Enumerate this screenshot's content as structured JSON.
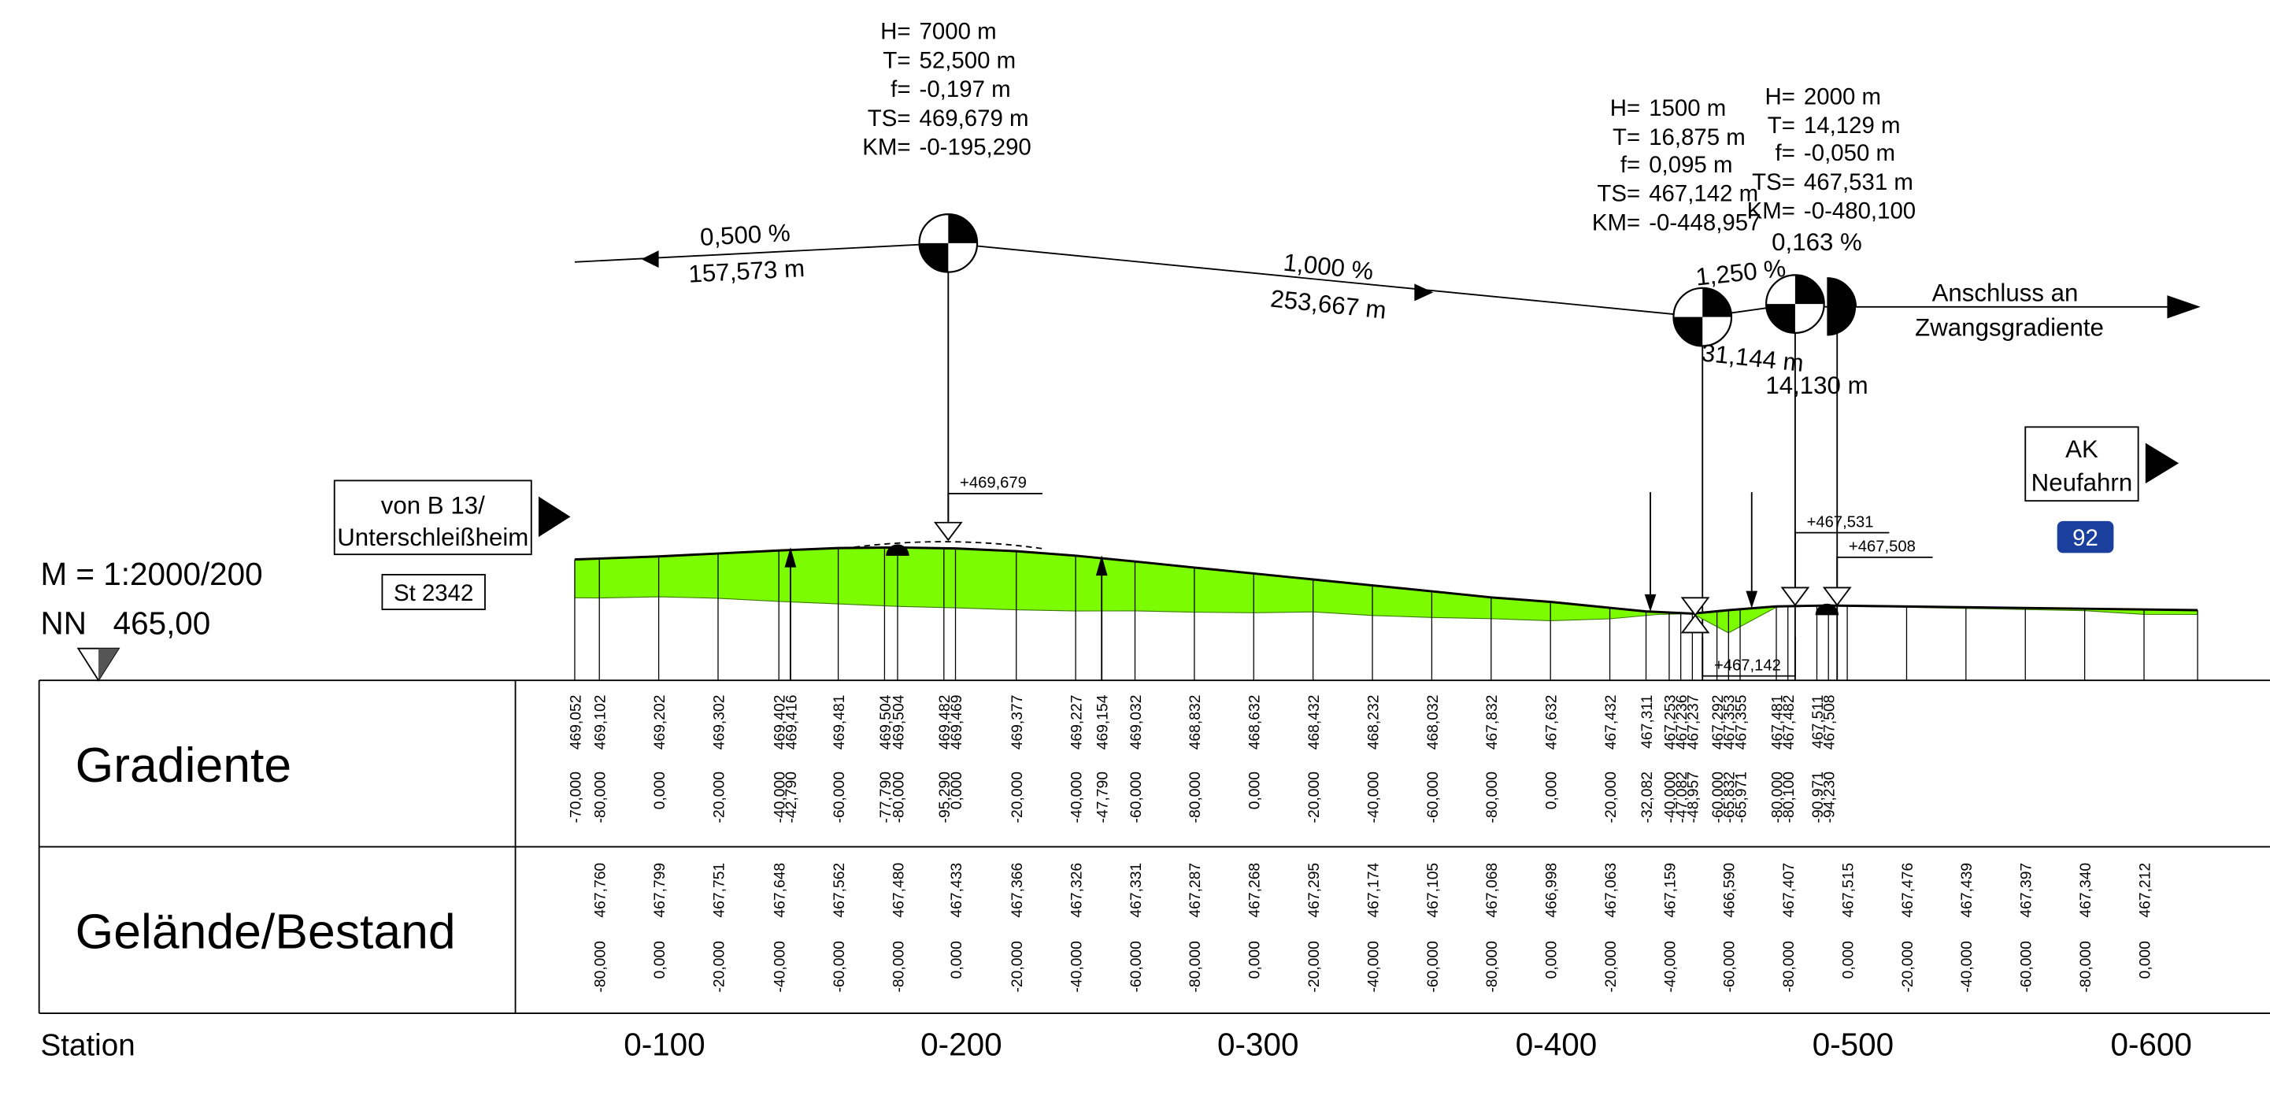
{
  "scale": "M = 1:2000/200",
  "datum": "NN   465,00",
  "start": {
    "label_lines": [
      "von B 13/",
      "Unterschleißheim"
    ],
    "road": "St 2342"
  },
  "end": {
    "label_lines": [
      "AK",
      "Neufahrn"
    ],
    "exit_number": "92"
  },
  "connection": [
    "Anschluss an",
    "Zwangsgradiente"
  ],
  "vertical_curves": [
    {
      "lines": [
        [
          "H=",
          "7000 m"
        ],
        [
          "T=",
          "52,500 m"
        ],
        [
          "f=",
          "-0,197 m"
        ],
        [
          "TS=",
          "469,679 m"
        ],
        [
          "KM=",
          "-0-195,290"
        ]
      ]
    },
    {
      "lines": [
        [
          "H=",
          "1500 m"
        ],
        [
          "T=",
          "16,875 m"
        ],
        [
          "f=",
          "0,095 m"
        ],
        [
          "TS=",
          "467,142 m"
        ],
        [
          "KM=",
          "-0-448,957"
        ]
      ]
    },
    {
      "lines": [
        [
          "H=",
          "2000 m"
        ],
        [
          "T=",
          "14,129 m"
        ],
        [
          "f=",
          "-0,050 m"
        ],
        [
          "TS=",
          "467,531 m"
        ],
        [
          "KM=",
          "-0-480,100"
        ]
      ]
    }
  ],
  "grades": [
    {
      "slope": "0,500 %",
      "length": "157,573 m"
    },
    {
      "slope": "1,000 %",
      "length": "253,667 m"
    },
    {
      "slope": "1,250 %",
      "length": "31,144 m"
    },
    {
      "slope": "0,163 %",
      "length": "14,130 m"
    }
  ],
  "elevation_tags": [
    "+469,679",
    "+467,142",
    "+467,531",
    "+467,508"
  ],
  "table": {
    "rows": [
      {
        "title": "Gradiente",
        "columns": [
          [
            "469,052",
            "-70,000"
          ],
          [
            "469,102",
            "-80,000"
          ],
          [
            "469,202",
            "0,000"
          ],
          [
            "469,302",
            "-20,000"
          ],
          [
            "469,402",
            "-40,000"
          ],
          [
            "469,416",
            "-42,790"
          ],
          [
            "469,481",
            "-60,000"
          ],
          [
            "469,504",
            "-77,790"
          ],
          [
            "469,504",
            "-80,000"
          ],
          [
            "469,482",
            "-95,290"
          ],
          [
            "469,469",
            "0,000"
          ],
          [
            "469,377",
            "-20,000"
          ],
          [
            "469,227",
            "-40,000"
          ],
          [
            "469,154",
            "-47,790"
          ],
          [
            "469,032",
            "-60,000"
          ],
          [
            "468,832",
            "-80,000"
          ],
          [
            "468,632",
            "0,000"
          ],
          [
            "468,432",
            "-20,000"
          ],
          [
            "468,232",
            "-40,000"
          ],
          [
            "468,032",
            "-60,000"
          ],
          [
            "467,832",
            "-80,000"
          ],
          [
            "467,632",
            "0,000"
          ],
          [
            "467,432",
            "-20,000"
          ],
          [
            "467,311",
            "-32,082"
          ],
          [
            "467,253",
            "-40,000"
          ],
          [
            "467,236",
            "-47,082"
          ],
          [
            "467,237",
            "-48,957"
          ],
          [
            "467,292",
            "-60,000"
          ],
          [
            "467,353",
            "-65,832"
          ],
          [
            "467,355",
            "-65,971"
          ],
          [
            "467,481",
            "-80,000"
          ],
          [
            "467,482",
            "-80,100"
          ],
          [
            "467,511",
            "-90,971"
          ],
          [
            "467,508",
            "-94,230"
          ]
        ]
      },
      {
        "title": "Gelände/Bestand",
        "columns": [
          [
            "467,760",
            "-80,000"
          ],
          [
            "467,799",
            "0,000"
          ],
          [
            "467,751",
            "-20,000"
          ],
          [
            "467,648",
            "-40,000"
          ],
          [
            "467,562",
            "-60,000"
          ],
          [
            "467,480",
            "-80,000"
          ],
          [
            "467,433",
            "0,000"
          ],
          [
            "467,366",
            "-20,000"
          ],
          [
            "467,326",
            "-40,000"
          ],
          [
            "467,331",
            "-60,000"
          ],
          [
            "467,287",
            "-80,000"
          ],
          [
            "467,268",
            "0,000"
          ],
          [
            "467,295",
            "-20,000"
          ],
          [
            "467,174",
            "-40,000"
          ],
          [
            "467,105",
            "-60,000"
          ],
          [
            "467,068",
            "-80,000"
          ],
          [
            "466,998",
            "0,000"
          ],
          [
            "467,063",
            "-20,000"
          ],
          [
            "467,159",
            "-40,000"
          ],
          [
            "466,590",
            "-60,000"
          ],
          [
            "467,407",
            "-80,000"
          ],
          [
            "467,515",
            "0,000"
          ],
          [
            "467,476",
            "-20,000"
          ],
          [
            "467,439",
            "-40,000"
          ],
          [
            "467,397",
            "-60,000"
          ],
          [
            "467,340",
            "-80,000"
          ],
          [
            "467,212",
            "0,000"
          ]
        ]
      }
    ],
    "station_title": "Station",
    "stations": [
      "0-100",
      "0-200",
      "0-300",
      "0-400",
      "0-500",
      "0-600"
    ]
  }
}
